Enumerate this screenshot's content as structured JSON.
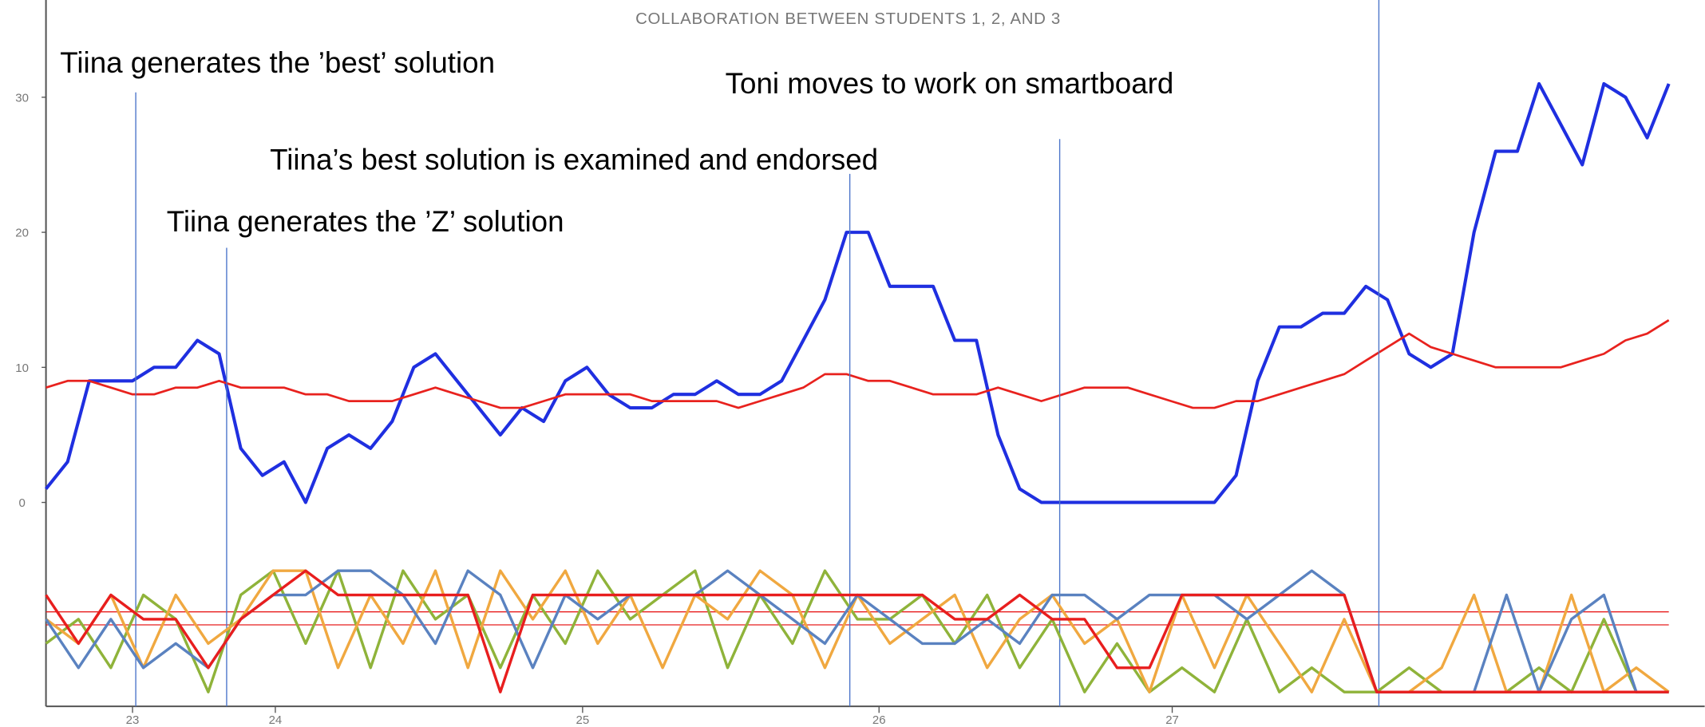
{
  "chart_data": [
    {
      "type": "line",
      "title": "COLLABORATION BETWEEN STUDENTS 1, 2, AND 3",
      "x": [
        0,
        2,
        4,
        6,
        8,
        10,
        12,
        14,
        16,
        18,
        20,
        22,
        24,
        26,
        28,
        30,
        32,
        34,
        36,
        38,
        40,
        42,
        44,
        46,
        48,
        50,
        52,
        54,
        56,
        58,
        60,
        62,
        64,
        66,
        68,
        70,
        72,
        74,
        76,
        78,
        80,
        82,
        84,
        86,
        88,
        90,
        92,
        94,
        96,
        98,
        100,
        102,
        104,
        106,
        108,
        110,
        112,
        114,
        116,
        118,
        120,
        122,
        124,
        126,
        128,
        130,
        132,
        134,
        136,
        138,
        140,
        142,
        144,
        146,
        148,
        150
      ],
      "xlim": [
        0,
        150
      ],
      "xticks": [
        {
          "value": 8.0,
          "label": "23"
        },
        {
          "value": 21.2,
          "label": "24"
        },
        {
          "value": 49.6,
          "label": "25"
        },
        {
          "value": 77.0,
          "label": "26"
        },
        {
          "value": 104.1,
          "label": "27"
        }
      ],
      "ylim": [
        -15.1,
        37.2
      ],
      "yticks": [
        0,
        10,
        20,
        30
      ],
      "series": [
        {
          "color": "#1f2fe0",
          "values": [
            1,
            3,
            9,
            9,
            9,
            10,
            10,
            12,
            11,
            4,
            2,
            3,
            0,
            4,
            5,
            4,
            6,
            10,
            11,
            9,
            7,
            5,
            7,
            6,
            9,
            10,
            8,
            7,
            7,
            8,
            8,
            9,
            8,
            8,
            9,
            12,
            15,
            20,
            20,
            16,
            16,
            16,
            12,
            12,
            5,
            1,
            0,
            0,
            0,
            0,
            0,
            0,
            0,
            0,
            0,
            2,
            9,
            13,
            13,
            14,
            14,
            16,
            15,
            11,
            10,
            11,
            20,
            26,
            26,
            31,
            28,
            25,
            31,
            30,
            27,
            31
          ]
        },
        {
          "color": "#e8221e",
          "values": [
            8.5,
            9,
            9,
            8.5,
            8,
            8,
            8.5,
            8.5,
            9,
            8.5,
            8.5,
            8.5,
            8,
            8,
            7.5,
            7.5,
            7.5,
            8,
            8.5,
            8,
            7.5,
            7,
            7,
            7.5,
            8,
            8,
            8,
            8,
            7.5,
            7.5,
            7.5,
            7.5,
            7,
            7.5,
            8,
            8.5,
            9.5,
            9.5,
            9,
            9,
            8.5,
            8,
            8,
            8,
            8.5,
            8,
            7.5,
            8,
            8.5,
            8.5,
            8.5,
            8,
            7.5,
            7,
            7,
            7.5,
            7.5,
            8,
            8.5,
            9,
            9.5,
            10.5,
            11.5,
            12.5,
            11.5,
            11,
            10.5,
            10,
            10,
            10,
            10,
            10.5,
            11,
            12,
            12.5,
            13.5
          ]
        }
      ],
      "vlines": [
        8.3,
        16.7,
        74.3,
        93.7,
        123.2
      ],
      "annotations": [
        "Tiina generates the ’best’ solution",
        "Toni moves to work on smartboard",
        "Tiina’s best solution is examined and endorsed",
        "Tiina generates the ’Z’ solution"
      ]
    },
    {
      "type": "line",
      "x": [
        0,
        3,
        6,
        9,
        12,
        15,
        18,
        21,
        24,
        27,
        30,
        33,
        36,
        39,
        42,
        45,
        48,
        51,
        54,
        57,
        60,
        63,
        66,
        69,
        72,
        75,
        78,
        81,
        84,
        87,
        90,
        93,
        96,
        99,
        102,
        105,
        108,
        111,
        114,
        117,
        120,
        123,
        126,
        129,
        132,
        135,
        138,
        141,
        144,
        147,
        150
      ],
      "xlim": [
        0,
        150
      ],
      "ylim": [
        -0.5,
        5.5
      ],
      "series": [
        {
          "color": "#8fb33a",
          "values": [
            2,
            3,
            1,
            4,
            3,
            0,
            4,
            5,
            2,
            5,
            1,
            5,
            3,
            4,
            1,
            4,
            2,
            5,
            3,
            4,
            5,
            1,
            4,
            2,
            5,
            3,
            3,
            4,
            2,
            4,
            1,
            3,
            0,
            2,
            0,
            1,
            0,
            3,
            0,
            1,
            0,
            0,
            1,
            0,
            0,
            0,
            1,
            0,
            3,
            0,
            0
          ]
        },
        {
          "color": "#f0a840",
          "values": [
            3,
            2,
            4,
            1,
            4,
            2,
            3,
            5,
            5,
            1,
            4,
            2,
            5,
            1,
            5,
            3,
            5,
            2,
            4,
            1,
            4,
            3,
            5,
            4,
            1,
            4,
            2,
            3,
            4,
            1,
            3,
            4,
            2,
            3,
            0,
            4,
            1,
            4,
            2,
            0,
            3,
            0,
            0,
            1,
            4,
            0,
            0,
            4,
            0,
            1,
            0
          ]
        },
        {
          "color": "#5a82c0",
          "values": [
            3,
            1,
            3,
            1,
            2,
            1,
            3,
            4,
            4,
            5,
            5,
            4,
            2,
            5,
            4,
            1,
            4,
            3,
            4,
            4,
            4,
            5,
            4,
            3,
            2,
            4,
            3,
            2,
            2,
            3,
            2,
            4,
            4,
            3,
            4,
            4,
            4,
            3,
            4,
            5,
            4,
            0,
            0,
            0,
            0,
            4,
            0,
            3,
            4,
            0,
            0
          ]
        },
        {
          "color": "#e81e1e",
          "values": [
            4,
            2,
            4,
            3,
            3,
            1,
            3,
            4,
            5,
            4,
            4,
            4,
            4,
            4,
            0,
            4,
            4,
            4,
            4,
            4,
            4,
            4,
            4,
            4,
            4,
            4,
            4,
            4,
            3,
            3,
            4,
            3,
            3,
            1,
            1,
            4,
            4,
            4,
            4,
            4,
            4,
            0,
            0,
            0,
            0,
            0,
            0,
            0,
            0,
            0,
            0
          ]
        }
      ]
    }
  ]
}
